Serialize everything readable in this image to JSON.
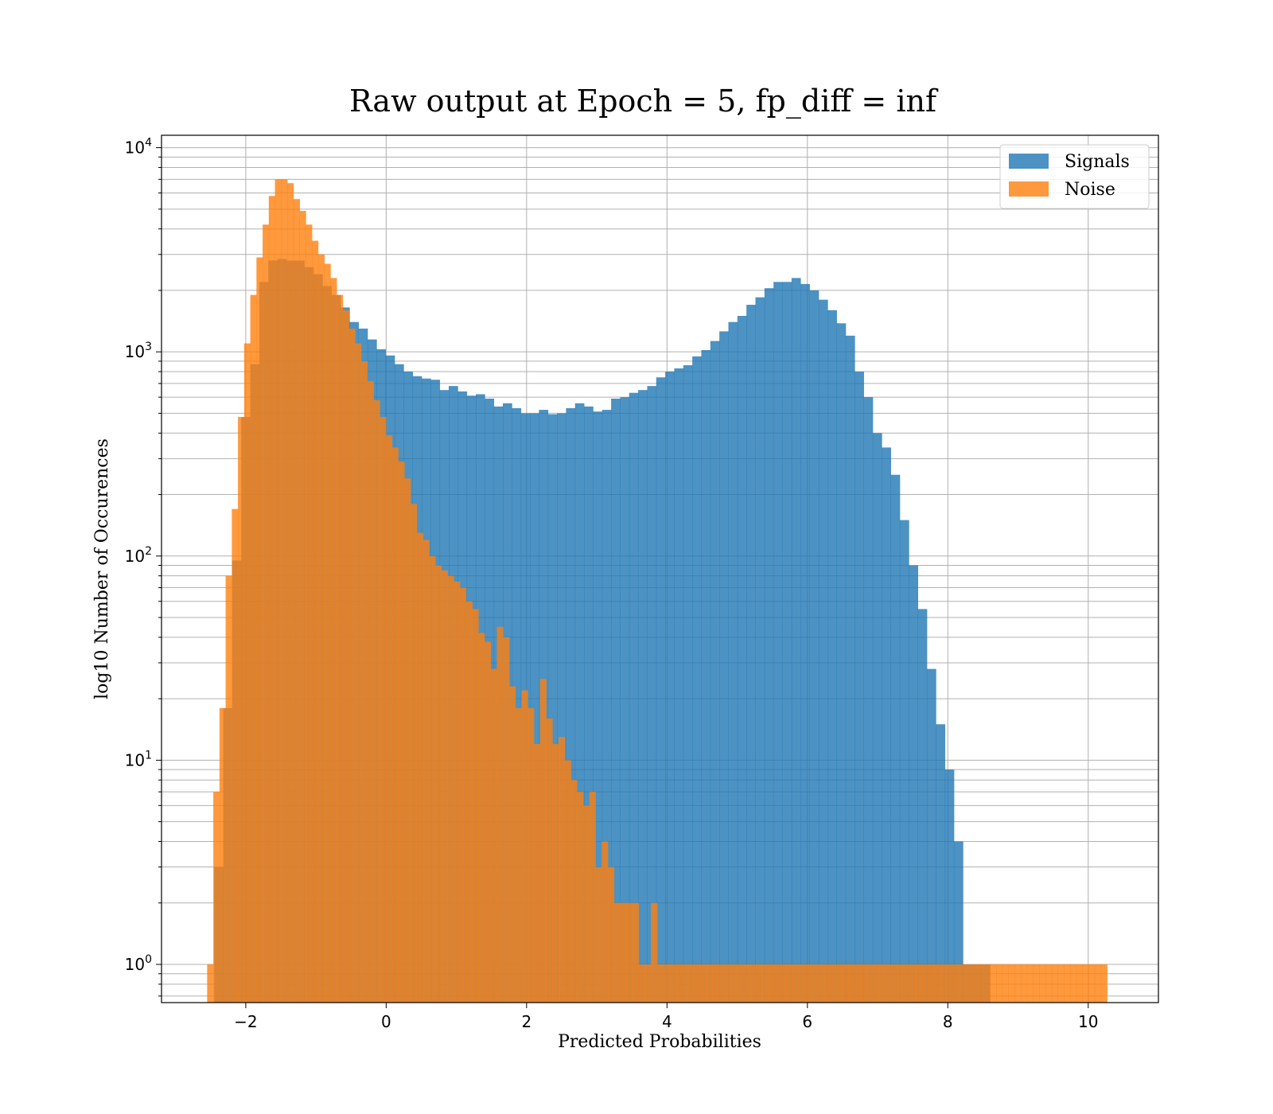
{
  "chart_data": {
    "type": "bar",
    "title": "Raw output at Epoch = 5, fp_diff = inf",
    "xlabel": "Predicted Probabilities",
    "ylabel": "log10 Number of Occurences",
    "xlim": [
      -3.2,
      11.0
    ],
    "ylim": [
      0.65,
      11500
    ],
    "yscale": "log",
    "grid": true,
    "legend_position": "top-right",
    "x_ticks": [
      -2,
      0,
      2,
      4,
      6,
      8,
      10
    ],
    "x_tick_labels": [
      "−2",
      "0",
      "2",
      "4",
      "6",
      "8",
      "10"
    ],
    "y_ticks": [
      1,
      10,
      100,
      1000,
      10000
    ],
    "y_tick_labels": [
      {
        "base": "10",
        "exp": "0"
      },
      {
        "base": "10",
        "exp": "1"
      },
      {
        "base": "10",
        "exp": "2"
      },
      {
        "base": "10",
        "exp": "3"
      },
      {
        "base": "10",
        "exp": "4"
      }
    ],
    "series": [
      {
        "name": "Signals",
        "color": "#1f77b4",
        "opacity": 0.8,
        "x_start": -2.45,
        "bin_width": 0.1285,
        "values": [
          3,
          18,
          95,
          480,
          870,
          2200,
          2800,
          2850,
          2800,
          2800,
          2600,
          2400,
          2100,
          1900,
          1650,
          1400,
          1300,
          1150,
          1030,
          960,
          870,
          800,
          760,
          740,
          730,
          650,
          680,
          640,
          610,
          620,
          590,
          540,
          560,
          530,
          500,
          500,
          520,
          495,
          500,
          530,
          560,
          540,
          510,
          520,
          590,
          600,
          630,
          650,
          680,
          750,
          800,
          830,
          860,
          950,
          1020,
          1130,
          1260,
          1400,
          1500,
          1700,
          1850,
          2050,
          2200,
          2200,
          2300,
          2150,
          2000,
          1800,
          1600,
          1380,
          1200,
          800,
          600,
          400,
          340,
          250,
          150,
          90,
          55,
          28,
          15,
          9,
          4,
          1,
          1,
          1
        ]
      },
      {
        "name": "Noise",
        "color": "#ff7f0e",
        "opacity": 0.8,
        "x_start": -2.55,
        "bin_width": 0.0878,
        "values": [
          1,
          7,
          18,
          80,
          170,
          480,
          1100,
          1900,
          2900,
          4200,
          5800,
          7000,
          7000,
          6700,
          5600,
          4900,
          4200,
          3500,
          3000,
          2700,
          2300,
          1900,
          1600,
          1300,
          1100,
          900,
          720,
          580,
          480,
          390,
          340,
          290,
          240,
          180,
          130,
          120,
          100,
          90,
          85,
          80,
          75,
          70,
          60,
          55,
          42,
          38,
          28,
          45,
          40,
          23,
          18,
          22,
          18,
          12,
          25,
          16,
          12,
          13,
          10,
          8,
          7,
          6,
          7,
          3,
          4,
          3,
          2,
          2,
          2,
          2,
          1,
          1,
          2,
          1,
          1,
          1,
          1,
          1,
          1,
          1,
          1,
          1,
          1,
          1,
          1,
          1,
          1,
          1,
          1,
          1,
          1,
          1,
          1,
          1,
          1,
          1,
          1,
          1,
          1,
          1,
          1,
          1,
          1,
          1,
          1,
          1,
          1,
          1,
          1,
          1,
          1,
          1,
          1,
          1,
          1,
          1,
          1,
          1,
          1,
          1,
          1,
          1,
          1,
          1,
          1,
          1,
          1,
          1,
          1,
          1,
          1,
          1,
          1,
          1,
          1,
          1,
          1,
          1,
          1,
          1,
          1,
          1,
          1,
          1,
          1,
          1
        ]
      }
    ]
  }
}
